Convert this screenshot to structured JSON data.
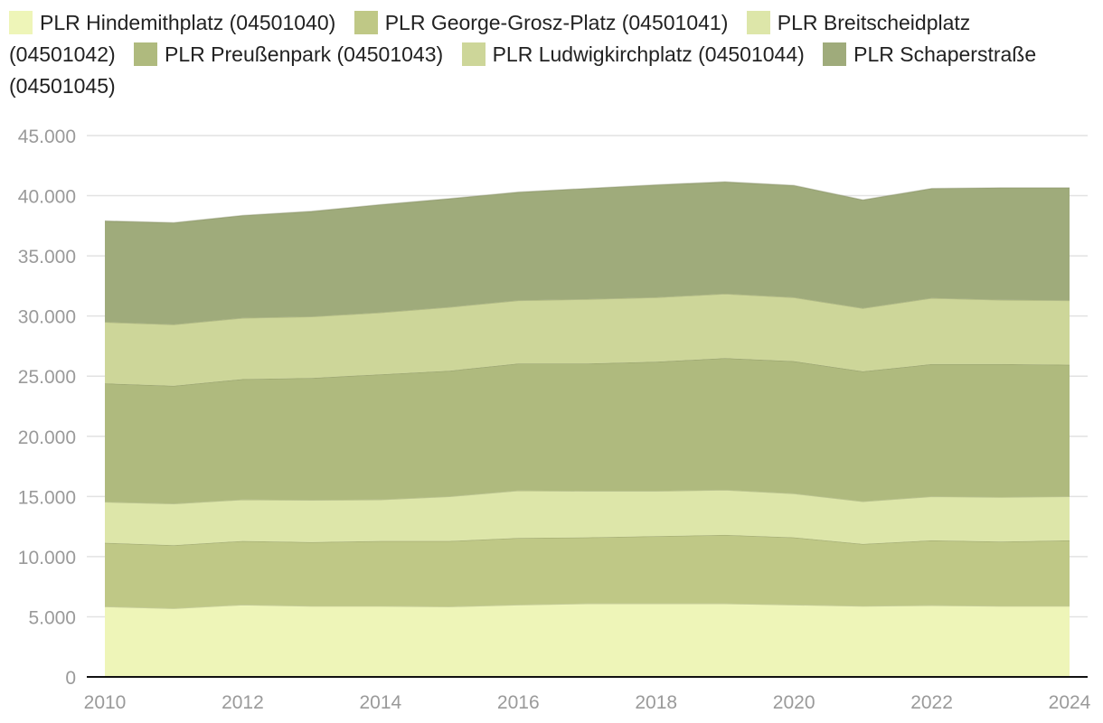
{
  "chart_data": {
    "type": "area",
    "stacked": true,
    "title": "",
    "xlabel": "",
    "ylabel": "",
    "x": [
      2010,
      2011,
      2012,
      2013,
      2014,
      2015,
      2016,
      2017,
      2018,
      2019,
      2020,
      2021,
      2022,
      2023,
      2024
    ],
    "x_tick_labels": [
      "2010",
      "2012",
      "2014",
      "2016",
      "2018",
      "2020",
      "2022",
      "2024"
    ],
    "y_tick_labels": [
      "0",
      "5.000",
      "10.000",
      "15.000",
      "20.000",
      "25.000",
      "30.000",
      "35.000",
      "40.000",
      "45.000"
    ],
    "ylim": [
      0,
      45000
    ],
    "grid": true,
    "legend_position": "top",
    "series": [
      {
        "name": "PLR Hindemithplatz (04501040)",
        "color": "#eef5b8",
        "values": [
          5850,
          5700,
          6000,
          5900,
          5900,
          5850,
          6000,
          6100,
          6100,
          6100,
          6000,
          5900,
          5950,
          5900,
          5900
        ]
      },
      {
        "name": "PLR George-Grosz-Platz (04501041)",
        "color": "#bfc886",
        "values": [
          5300,
          5250,
          5300,
          5300,
          5400,
          5450,
          5550,
          5500,
          5600,
          5700,
          5600,
          5150,
          5400,
          5350,
          5450
        ]
      },
      {
        "name": "PLR Breitscheidplatz (04501042)",
        "color": "#dde6a9",
        "values": [
          3400,
          3450,
          3450,
          3500,
          3450,
          3700,
          3950,
          3850,
          3750,
          3750,
          3650,
          3550,
          3650,
          3700,
          3650
        ]
      },
      {
        "name": "PLR Preußenpark (04501043)",
        "color": "#afba7e",
        "values": [
          9850,
          9800,
          10000,
          10150,
          10400,
          10450,
          10550,
          10600,
          10750,
          10950,
          11000,
          10800,
          11000,
          11050,
          10950
        ]
      },
      {
        "name": "PLR Ludwigkirchplatz (04501044)",
        "color": "#cdd699",
        "values": [
          5100,
          5100,
          5100,
          5100,
          5150,
          5300,
          5250,
          5350,
          5350,
          5350,
          5300,
          5250,
          5500,
          5350,
          5350
        ]
      },
      {
        "name": "PLR Schaperstraße (04501045)",
        "color": "#9fab7b",
        "values": [
          8400,
          8450,
          8500,
          8750,
          8950,
          9000,
          9000,
          9200,
          9350,
          9300,
          9300,
          9000,
          9100,
          9300,
          9350
        ]
      }
    ]
  }
}
